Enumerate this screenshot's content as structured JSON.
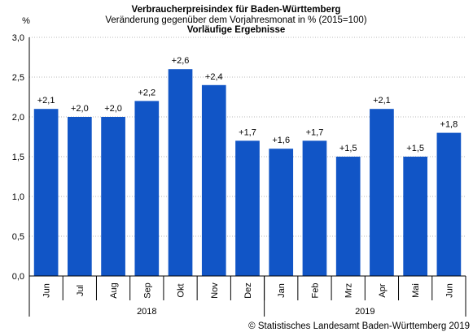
{
  "chart_data": {
    "type": "bar",
    "title": "Verbraucherpreisindex für Baden-Württemberg",
    "subtitle": "Veränderung gegenüber dem Vorjahresmonat in % (2015=100)",
    "subtitle2": "Vorläufige Ergebnisse",
    "ylabel": "%",
    "ylim": [
      0,
      3
    ],
    "yticks": [
      "0,0",
      "0,5",
      "1,0",
      "1,5",
      "2,0",
      "2,5",
      "3,0"
    ],
    "grid": true,
    "categories": [
      "Jun",
      "Jul",
      "Aug",
      "Sep",
      "Okt",
      "Nov",
      "Dez",
      "Jan",
      "Feb",
      "Mrz",
      "Apr",
      "Mai",
      "Jun"
    ],
    "values": [
      2.1,
      2.0,
      2.0,
      2.2,
      2.6,
      2.4,
      1.7,
      1.6,
      1.7,
      1.5,
      2.1,
      1.5,
      1.8
    ],
    "data_labels": [
      "+2,1",
      "+2,0",
      "+2,0",
      "+2,2",
      "+2,6",
      "+2,4",
      "+1,7",
      "+1,6",
      "+1,7",
      "+1,5",
      "+2,1",
      "+1,5",
      "+1,8"
    ],
    "year_groups": [
      {
        "label": "2018",
        "count": 7
      },
      {
        "label": "2019",
        "count": 6
      }
    ],
    "bar_color": "#1155c6",
    "source": "© Statistisches Landesamt Baden-Württemberg 2019"
  }
}
